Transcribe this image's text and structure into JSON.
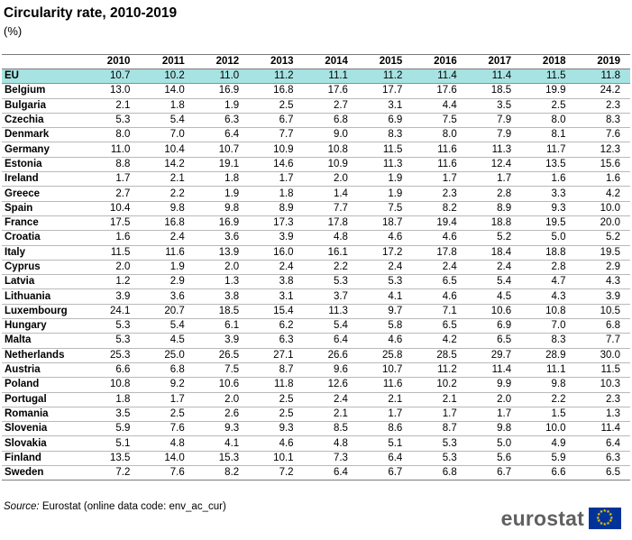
{
  "title": "Circularity rate, 2010-2019",
  "subtitle": "(%)",
  "source_label": "Source:",
  "source_text": "Eurostat (online data code: env_ac_cur)",
  "logo_text": "eurostat",
  "colors": {
    "highlight_row": "#a8e3e3",
    "flag_blue": "#003399",
    "flag_star": "#ffcc00"
  },
  "chart_data": {
    "type": "table",
    "title": "Circularity rate, 2010-2019",
    "unit": "(%)",
    "columns": [
      "2010",
      "2011",
      "2012",
      "2013",
      "2014",
      "2015",
      "2016",
      "2017",
      "2018",
      "2019"
    ],
    "rows": [
      {
        "label": "EU",
        "values": [
          "10.7",
          "10.2",
          "11.0",
          "11.2",
          "11.1",
          "11.2",
          "11.4",
          "11.4",
          "11.5",
          "11.8"
        ],
        "highlight": true
      },
      {
        "label": "Belgium",
        "values": [
          "13.0",
          "14.0",
          "16.9",
          "16.8",
          "17.6",
          "17.7",
          "17.6",
          "18.5",
          "19.9",
          "24.2"
        ]
      },
      {
        "label": "Bulgaria",
        "values": [
          "2.1",
          "1.8",
          "1.9",
          "2.5",
          "2.7",
          "3.1",
          "4.4",
          "3.5",
          "2.5",
          "2.3"
        ]
      },
      {
        "label": "Czechia",
        "values": [
          "5.3",
          "5.4",
          "6.3",
          "6.7",
          "6.8",
          "6.9",
          "7.5",
          "7.9",
          "8.0",
          "8.3"
        ]
      },
      {
        "label": "Denmark",
        "values": [
          "8.0",
          "7.0",
          "6.4",
          "7.7",
          "9.0",
          "8.3",
          "8.0",
          "7.9",
          "8.1",
          "7.6"
        ]
      },
      {
        "label": "Germany",
        "values": [
          "11.0",
          "10.4",
          "10.7",
          "10.9",
          "10.8",
          "11.5",
          "11.6",
          "11.3",
          "11.7",
          "12.3"
        ]
      },
      {
        "label": "Estonia",
        "values": [
          "8.8",
          "14.2",
          "19.1",
          "14.6",
          "10.9",
          "11.3",
          "11.6",
          "12.4",
          "13.5",
          "15.6"
        ]
      },
      {
        "label": "Ireland",
        "values": [
          "1.7",
          "2.1",
          "1.8",
          "1.7",
          "2.0",
          "1.9",
          "1.7",
          "1.7",
          "1.6",
          "1.6"
        ]
      },
      {
        "label": "Greece",
        "values": [
          "2.7",
          "2.2",
          "1.9",
          "1.8",
          "1.4",
          "1.9",
          "2.3",
          "2.8",
          "3.3",
          "4.2"
        ]
      },
      {
        "label": "Spain",
        "values": [
          "10.4",
          "9.8",
          "9.8",
          "8.9",
          "7.7",
          "7.5",
          "8.2",
          "8.9",
          "9.3",
          "10.0"
        ]
      },
      {
        "label": "France",
        "values": [
          "17.5",
          "16.8",
          "16.9",
          "17.3",
          "17.8",
          "18.7",
          "19.4",
          "18.8",
          "19.5",
          "20.0"
        ]
      },
      {
        "label": "Croatia",
        "values": [
          "1.6",
          "2.4",
          "3.6",
          "3.9",
          "4.8",
          "4.6",
          "4.6",
          "5.2",
          "5.0",
          "5.2"
        ]
      },
      {
        "label": "Italy",
        "values": [
          "11.5",
          "11.6",
          "13.9",
          "16.0",
          "16.1",
          "17.2",
          "17.8",
          "18.4",
          "18.8",
          "19.5"
        ]
      },
      {
        "label": "Cyprus",
        "values": [
          "2.0",
          "1.9",
          "2.0",
          "2.4",
          "2.2",
          "2.4",
          "2.4",
          "2.4",
          "2.8",
          "2.9"
        ]
      },
      {
        "label": "Latvia",
        "values": [
          "1.2",
          "2.9",
          "1.3",
          "3.8",
          "5.3",
          "5.3",
          "6.5",
          "5.4",
          "4.7",
          "4.3"
        ]
      },
      {
        "label": "Lithuania",
        "values": [
          "3.9",
          "3.6",
          "3.8",
          "3.1",
          "3.7",
          "4.1",
          "4.6",
          "4.5",
          "4.3",
          "3.9"
        ]
      },
      {
        "label": "Luxembourg",
        "values": [
          "24.1",
          "20.7",
          "18.5",
          "15.4",
          "11.3",
          "9.7",
          "7.1",
          "10.6",
          "10.8",
          "10.5"
        ]
      },
      {
        "label": "Hungary",
        "values": [
          "5.3",
          "5.4",
          "6.1",
          "6.2",
          "5.4",
          "5.8",
          "6.5",
          "6.9",
          "7.0",
          "6.8"
        ]
      },
      {
        "label": "Malta",
        "values": [
          "5.3",
          "4.5",
          "3.9",
          "6.3",
          "6.4",
          "4.6",
          "4.2",
          "6.5",
          "8.3",
          "7.7"
        ]
      },
      {
        "label": "Netherlands",
        "values": [
          "25.3",
          "25.0",
          "26.5",
          "27.1",
          "26.6",
          "25.8",
          "28.5",
          "29.7",
          "28.9",
          "30.0"
        ]
      },
      {
        "label": "Austria",
        "values": [
          "6.6",
          "6.8",
          "7.5",
          "8.7",
          "9.6",
          "10.7",
          "11.2",
          "11.4",
          "11.1",
          "11.5"
        ]
      },
      {
        "label": "Poland",
        "values": [
          "10.8",
          "9.2",
          "10.6",
          "11.8",
          "12.6",
          "11.6",
          "10.2",
          "9.9",
          "9.8",
          "10.3"
        ]
      },
      {
        "label": "Portugal",
        "values": [
          "1.8",
          "1.7",
          "2.0",
          "2.5",
          "2.4",
          "2.1",
          "2.1",
          "2.0",
          "2.2",
          "2.3"
        ]
      },
      {
        "label": "Romania",
        "values": [
          "3.5",
          "2.5",
          "2.6",
          "2.5",
          "2.1",
          "1.7",
          "1.7",
          "1.7",
          "1.5",
          "1.3"
        ]
      },
      {
        "label": "Slovenia",
        "values": [
          "5.9",
          "7.6",
          "9.3",
          "9.3",
          "8.5",
          "8.6",
          "8.7",
          "9.8",
          "10.0",
          "11.4"
        ]
      },
      {
        "label": "Slovakia",
        "values": [
          "5.1",
          "4.8",
          "4.1",
          "4.6",
          "4.8",
          "5.1",
          "5.3",
          "5.0",
          "4.9",
          "6.4"
        ]
      },
      {
        "label": "Finland",
        "values": [
          "13.5",
          "14.0",
          "15.3",
          "10.1",
          "7.3",
          "6.4",
          "5.3",
          "5.6",
          "5.9",
          "6.3"
        ]
      },
      {
        "label": "Sweden",
        "values": [
          "7.2",
          "7.6",
          "8.2",
          "7.2",
          "6.4",
          "6.7",
          "6.8",
          "6.7",
          "6.6",
          "6.5"
        ]
      }
    ]
  }
}
